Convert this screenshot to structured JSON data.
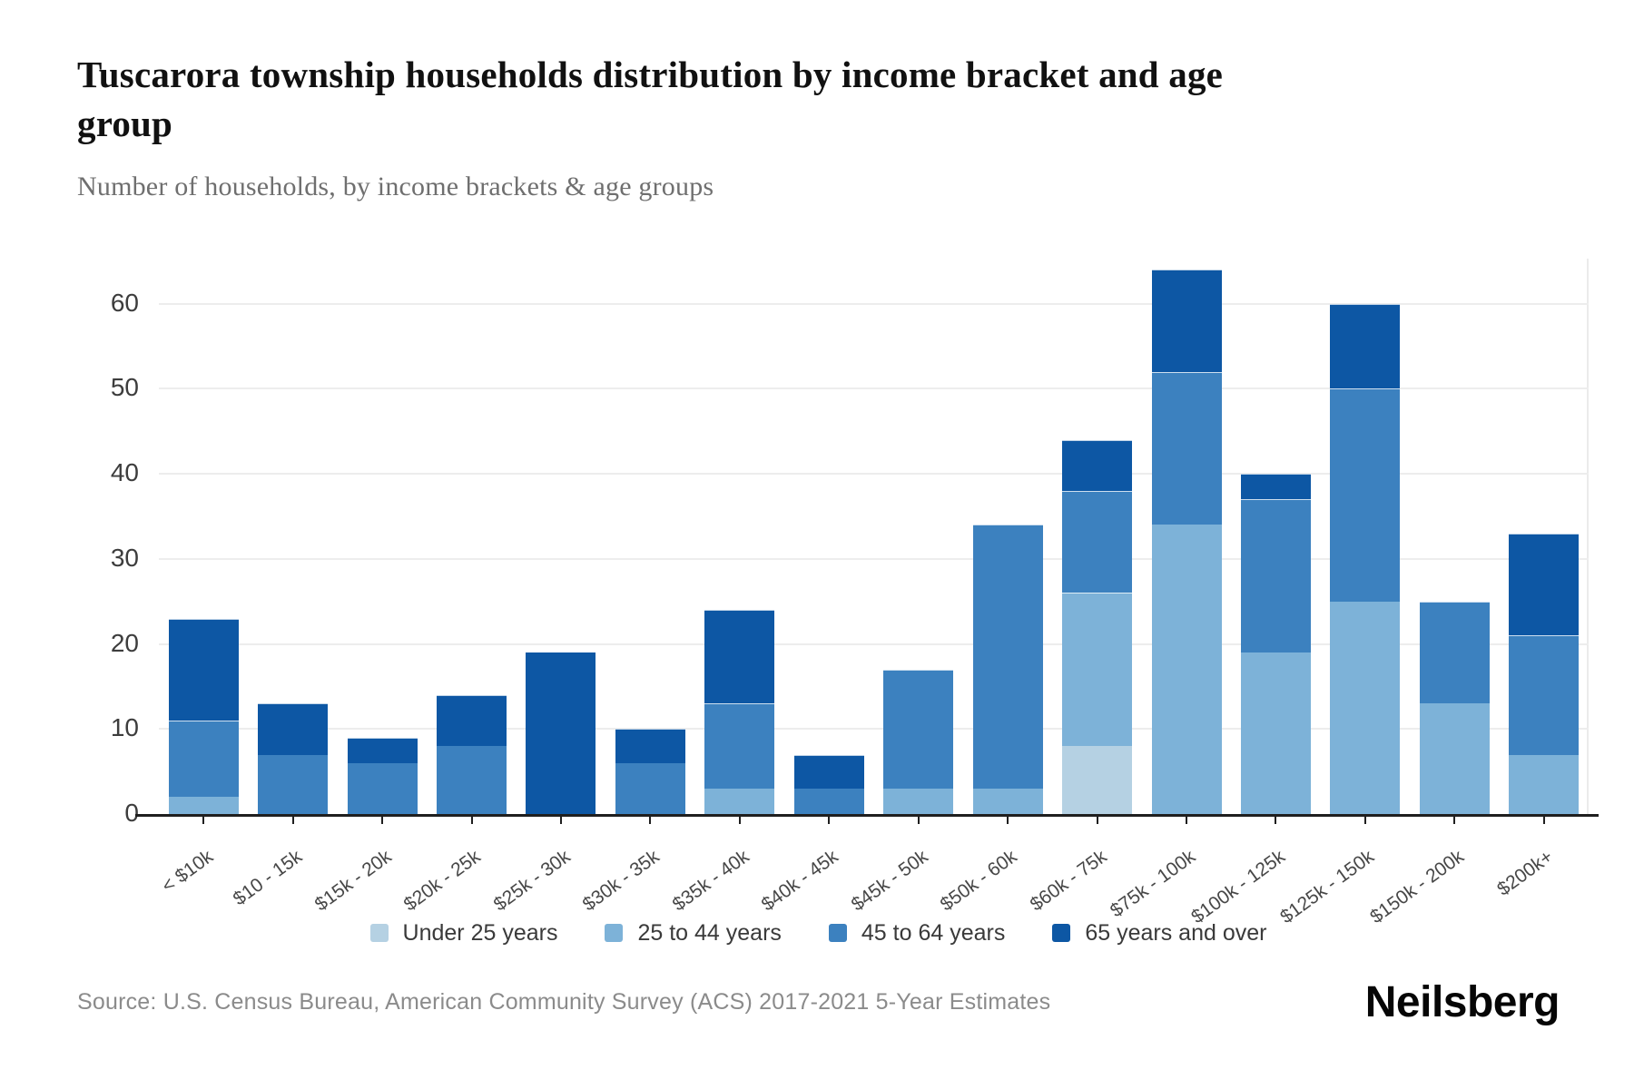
{
  "title": "Tuscarora township households distribution by income bracket and age group",
  "subtitle": "Number of households, by income brackets & age groups",
  "source": "Source: U.S. Census Bureau, American Community Survey (ACS) 2017-2021 5-Year Estimates",
  "logo_text": "Neilsberg",
  "colors": {
    "axis": "#1f1f1f",
    "gridline": "#ededed",
    "background": "#ffffff"
  },
  "chart_data": {
    "type": "bar",
    "stacked": true,
    "title": "Tuscarora township households distribution by income bracket and age group",
    "xlabel": "",
    "ylabel": "Number of households",
    "ylim": [
      0,
      64
    ],
    "y_ticks": [
      0,
      10,
      20,
      30,
      40,
      50,
      60
    ],
    "grid": "horizontal",
    "legend_position": "bottom",
    "categories": [
      "< $10k",
      "$10 - 15k",
      "$15k - 20k",
      "$20k - 25k",
      "$25k - 30k",
      "$30k - 35k",
      "$35k - 40k",
      "$40k - 45k",
      "$45k - 50k",
      "$50k - 60k",
      "$60k - 75k",
      "$75k - 100k",
      "$100k - 125k",
      "$125k - 150k",
      "$150k - 200k",
      "$200k+"
    ],
    "series": [
      {
        "name": "Under 25 years",
        "color": "#b5d1e3",
        "values": [
          0,
          0,
          0,
          0,
          0,
          0,
          0,
          0,
          0,
          0,
          8,
          0,
          0,
          0,
          0,
          0
        ]
      },
      {
        "name": "25 to 44 years",
        "color": "#7db2d8",
        "values": [
          2,
          0,
          0,
          0,
          0,
          0,
          3,
          0,
          3,
          3,
          18,
          34,
          19,
          25,
          13,
          7
        ]
      },
      {
        "name": "45 to 64 years",
        "color": "#3c81bf",
        "values": [
          9,
          7,
          6,
          8,
          0,
          6,
          10,
          3,
          14,
          31,
          12,
          18,
          18,
          25,
          12,
          14
        ]
      },
      {
        "name": "65 years and over",
        "color": "#0d57a4",
        "values": [
          12,
          6,
          3,
          6,
          19,
          4,
          11,
          4,
          0,
          0,
          6,
          12,
          3,
          10,
          0,
          12
        ]
      }
    ],
    "totals": [
      23,
      13,
      9,
      14,
      19,
      10,
      24,
      7,
      17,
      34,
      44,
      64,
      40,
      60,
      25,
      33
    ]
  }
}
